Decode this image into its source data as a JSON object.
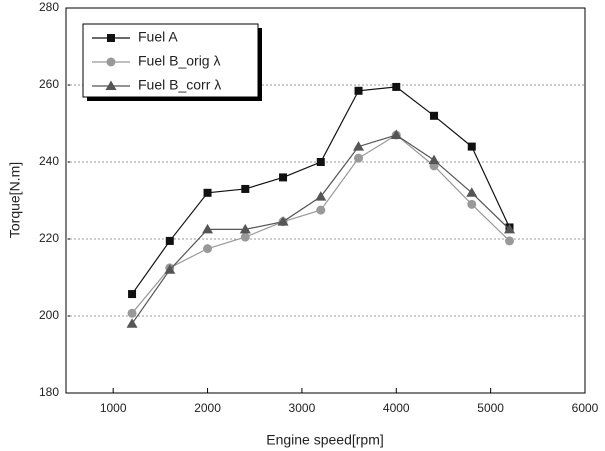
{
  "chart_data": {
    "type": "line",
    "x_label": "Engine speed[rpm]",
    "y_label": "Torque[N.m]",
    "x": [
      1200,
      1600,
      2000,
      2400,
      2800,
      3200,
      3600,
      4000,
      4400,
      4800,
      5200
    ],
    "series": [
      {
        "name": "Fuel A",
        "color": "#111111",
        "marker": "square",
        "values": [
          205.7,
          219.5,
          232,
          233,
          236,
          240,
          258.5,
          259.5,
          252,
          244,
          223
        ]
      },
      {
        "name": "Fuel B_orig λ",
        "color": "#999999",
        "marker": "circle",
        "values": [
          200.7,
          212.5,
          217.5,
          220.5,
          224.5,
          227.5,
          241,
          247,
          239,
          229,
          219.5
        ]
      },
      {
        "name": "Fuel B_corr λ",
        "color": "#555555",
        "marker": "triangle",
        "values": [
          198,
          212,
          222.5,
          222.5,
          224.5,
          231,
          244,
          247,
          240.5,
          232,
          222.5
        ]
      }
    ],
    "xlim": [
      500,
      6000
    ],
    "xticks": [
      1000,
      2000,
      3000,
      4000,
      5000,
      6000
    ],
    "ylim": [
      180,
      280
    ],
    "yticks": [
      180,
      200,
      220,
      240,
      260,
      280
    ],
    "grid": true,
    "legend": "top-left"
  }
}
